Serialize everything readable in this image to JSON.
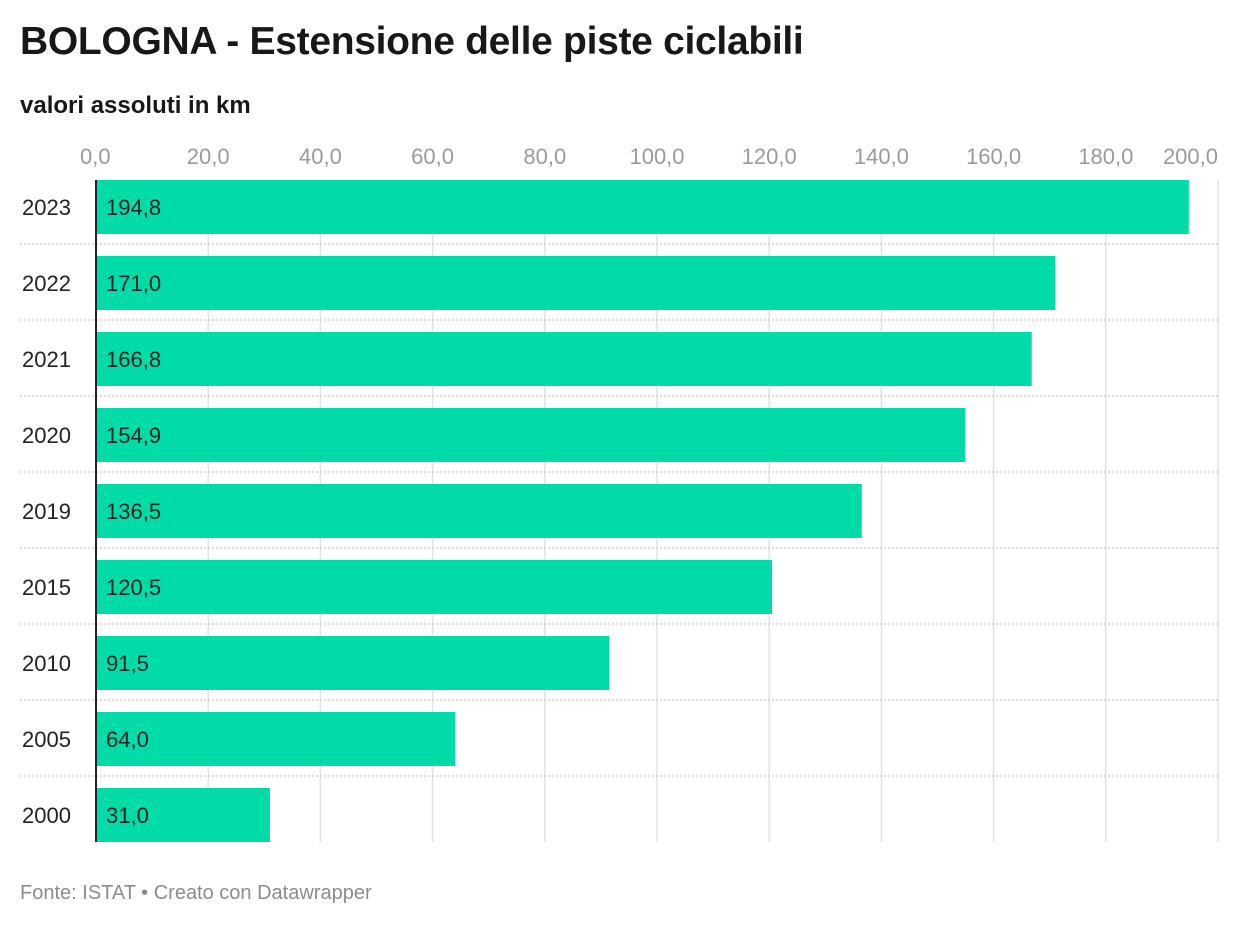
{
  "chart_data": {
    "type": "bar",
    "orientation": "horizontal",
    "title": "BOLOGNA - Estensione delle piste ciclabili",
    "subtitle": "valori assoluti in km",
    "categories": [
      "2023",
      "2022",
      "2021",
      "2020",
      "2019",
      "2015",
      "2010",
      "2005",
      "2000"
    ],
    "values": [
      194.8,
      171.0,
      166.8,
      154.9,
      136.5,
      120.5,
      91.5,
      64.0,
      31.0
    ],
    "value_labels": [
      "194,8",
      "171,0",
      "166,8",
      "154,9",
      "136,5",
      "120,5",
      "91,5",
      "64,0",
      "31,0"
    ],
    "xlim": [
      0,
      200
    ],
    "x_ticks": [
      0,
      20,
      40,
      60,
      80,
      100,
      120,
      140,
      160,
      180,
      200
    ],
    "x_tick_labels": [
      "0,0",
      "20,0",
      "40,0",
      "60,0",
      "80,0",
      "100,0",
      "120,0",
      "140,0",
      "160,0",
      "180,0",
      "200,0"
    ],
    "grid": true,
    "bar_color": "#00dba8"
  },
  "footer": {
    "source": "Fonte: ISTAT • Creato con Datawrapper"
  }
}
